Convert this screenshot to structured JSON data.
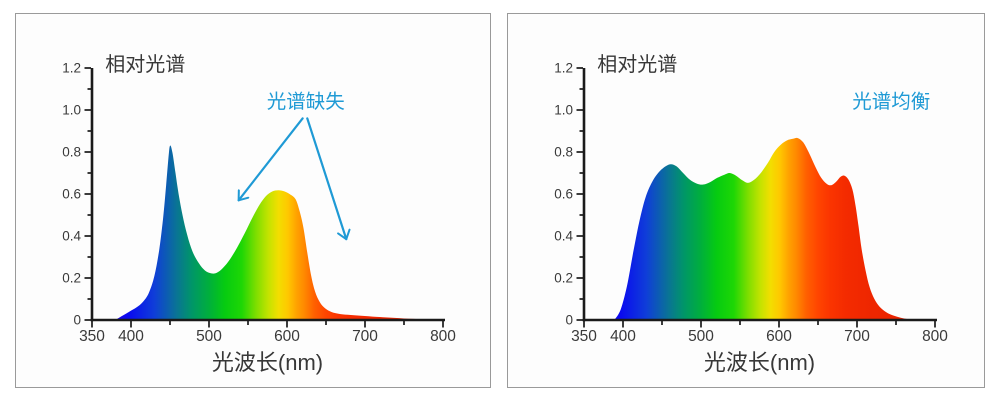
{
  "page": {
    "background": "#ffffff",
    "panel_background": "#fdfdfd",
    "panel_border_color": "#9a9a9a"
  },
  "colors": {
    "axis_line": "#1a1a1a",
    "tick_text": "#3a3a3a",
    "title_text": "#383838",
    "highlight_blue": "#1f9ad5"
  },
  "spectrum_gradient": [
    {
      "nm": 350,
      "color": "#3d00d9"
    },
    {
      "nm": 397,
      "color": "#0a0af0"
    },
    {
      "nm": 430,
      "color": "#0f3ed8"
    },
    {
      "nm": 458,
      "color": "#0a7396"
    },
    {
      "nm": 478,
      "color": "#009668"
    },
    {
      "nm": 500,
      "color": "#00af3c"
    },
    {
      "nm": 520,
      "color": "#06cb11"
    },
    {
      "nm": 542,
      "color": "#1ed705"
    },
    {
      "nm": 560,
      "color": "#7cde00"
    },
    {
      "nm": 576,
      "color": "#c3e300"
    },
    {
      "nm": 589,
      "color": "#f2de00"
    },
    {
      "nm": 601,
      "color": "#ffc800"
    },
    {
      "nm": 613,
      "color": "#ffa000"
    },
    {
      "nm": 622,
      "color": "#ff8a00"
    },
    {
      "nm": 635,
      "color": "#ff6000"
    },
    {
      "nm": 650,
      "color": "#ff4500"
    },
    {
      "nm": 665,
      "color": "#fb3500"
    },
    {
      "nm": 685,
      "color": "#f42b00"
    },
    {
      "nm": 720,
      "color": "#ee2600"
    },
    {
      "nm": 800,
      "color": "#e62000"
    }
  ],
  "chart_data": [
    {
      "type": "area",
      "title": "相对光谱",
      "xlabel": "光波长(nm)",
      "ylabel": "",
      "xlim": [
        350,
        800
      ],
      "ylim": [
        0,
        1.2
      ],
      "grid": false,
      "x_ticks": [
        {
          "v": 350,
          "label": "350"
        },
        {
          "v": 400,
          "label": "400"
        },
        {
          "v": 450,
          "label": ""
        },
        {
          "v": 500,
          "label": "500"
        },
        {
          "v": 550,
          "label": ""
        },
        {
          "v": 600,
          "label": "600"
        },
        {
          "v": 650,
          "label": ""
        },
        {
          "v": 700,
          "label": "700"
        },
        {
          "v": 750,
          "label": ""
        },
        {
          "v": 800,
          "label": "800"
        }
      ],
      "y_ticks": [
        {
          "v": 0,
          "label": "0"
        },
        {
          "v": 0.1,
          "label": ""
        },
        {
          "v": 0.2,
          "label": "0.2"
        },
        {
          "v": 0.3,
          "label": ""
        },
        {
          "v": 0.4,
          "label": "0.4"
        },
        {
          "v": 0.5,
          "label": ""
        },
        {
          "v": 0.6,
          "label": "0.6"
        },
        {
          "v": 0.7,
          "label": ""
        },
        {
          "v": 0.8,
          "label": "0.8"
        },
        {
          "v": 0.9,
          "label": ""
        },
        {
          "v": 1.0,
          "label": "1.0"
        },
        {
          "v": 1.1,
          "label": ""
        },
        {
          "v": 1.2,
          "label": "1.2"
        }
      ],
      "title_pos": {
        "x_nm": 367,
        "y_rel": 1.185
      },
      "annotation": {
        "text": "光谱缺失",
        "x_nm": 624,
        "y_rel": 1.01,
        "arrows": [
          {
            "from": [
              620,
              0.96
            ],
            "to": [
              538,
              0.57
            ]
          },
          {
            "from": [
              626,
              0.96
            ],
            "to": [
              676,
              0.385
            ]
          }
        ]
      },
      "curve": [
        [
          380,
          0
        ],
        [
          389,
          0.02
        ],
        [
          398,
          0.04
        ],
        [
          407,
          0.06
        ],
        [
          415,
          0.085
        ],
        [
          423,
          0.13
        ],
        [
          430,
          0.21
        ],
        [
          436,
          0.33
        ],
        [
          441,
          0.48
        ],
        [
          445,
          0.64
        ],
        [
          448,
          0.77
        ],
        [
          450,
          0.83
        ],
        [
          453,
          0.8
        ],
        [
          457,
          0.7
        ],
        [
          461,
          0.6
        ],
        [
          466,
          0.5
        ],
        [
          472,
          0.405
        ],
        [
          479,
          0.325
        ],
        [
          487,
          0.27
        ],
        [
          495,
          0.235
        ],
        [
          503,
          0.222
        ],
        [
          510,
          0.225
        ],
        [
          518,
          0.248
        ],
        [
          527,
          0.29
        ],
        [
          536,
          0.345
        ],
        [
          546,
          0.415
        ],
        [
          556,
          0.49
        ],
        [
          565,
          0.55
        ],
        [
          573,
          0.59
        ],
        [
          581,
          0.612
        ],
        [
          589,
          0.618
        ],
        [
          597,
          0.612
        ],
        [
          604,
          0.598
        ],
        [
          611,
          0.575
        ],
        [
          616,
          0.52
        ],
        [
          621,
          0.44
        ],
        [
          626,
          0.32
        ],
        [
          631,
          0.21
        ],
        [
          636,
          0.135
        ],
        [
          642,
          0.085
        ],
        [
          649,
          0.055
        ],
        [
          657,
          0.038
        ],
        [
          666,
          0.03
        ],
        [
          678,
          0.025
        ],
        [
          695,
          0.02
        ],
        [
          715,
          0.015
        ],
        [
          738,
          0.01
        ],
        [
          762,
          0.005
        ],
        [
          785,
          0.002
        ],
        [
          797,
          0
        ]
      ]
    },
    {
      "type": "area",
      "title": "相对光谱",
      "xlabel": "光波长(nm)",
      "ylabel": "",
      "xlim": [
        350,
        800
      ],
      "ylim": [
        0,
        1.2
      ],
      "grid": false,
      "x_ticks": [
        {
          "v": 350,
          "label": "350"
        },
        {
          "v": 400,
          "label": "400"
        },
        {
          "v": 450,
          "label": ""
        },
        {
          "v": 500,
          "label": "500"
        },
        {
          "v": 550,
          "label": ""
        },
        {
          "v": 600,
          "label": "600"
        },
        {
          "v": 650,
          "label": ""
        },
        {
          "v": 700,
          "label": "700"
        },
        {
          "v": 750,
          "label": ""
        },
        {
          "v": 800,
          "label": "800"
        }
      ],
      "y_ticks": [
        {
          "v": 0,
          "label": "0"
        },
        {
          "v": 0.1,
          "label": ""
        },
        {
          "v": 0.2,
          "label": "0.2"
        },
        {
          "v": 0.3,
          "label": ""
        },
        {
          "v": 0.4,
          "label": "0.4"
        },
        {
          "v": 0.5,
          "label": ""
        },
        {
          "v": 0.6,
          "label": "0.6"
        },
        {
          "v": 0.7,
          "label": ""
        },
        {
          "v": 0.8,
          "label": "0.8"
        },
        {
          "v": 0.9,
          "label": ""
        },
        {
          "v": 1.0,
          "label": "1.0"
        },
        {
          "v": 1.1,
          "label": ""
        },
        {
          "v": 1.2,
          "label": "1.2"
        }
      ],
      "title_pos": {
        "x_nm": 367,
        "y_rel": 1.185
      },
      "annotation": {
        "text": "光谱均衡",
        "x_nm": 744,
        "y_rel": 1.01,
        "arrows": []
      },
      "curve": [
        [
          389,
          0
        ],
        [
          397,
          0.05
        ],
        [
          405,
          0.16
        ],
        [
          413,
          0.32
        ],
        [
          421,
          0.47
        ],
        [
          429,
          0.585
        ],
        [
          437,
          0.655
        ],
        [
          445,
          0.7
        ],
        [
          453,
          0.728
        ],
        [
          461,
          0.742
        ],
        [
          469,
          0.731
        ],
        [
          477,
          0.7
        ],
        [
          486,
          0.667
        ],
        [
          495,
          0.649
        ],
        [
          503,
          0.645
        ],
        [
          512,
          0.657
        ],
        [
          521,
          0.677
        ],
        [
          530,
          0.692
        ],
        [
          537,
          0.7
        ],
        [
          545,
          0.687
        ],
        [
          553,
          0.665
        ],
        [
          560,
          0.653
        ],
        [
          568,
          0.667
        ],
        [
          577,
          0.702
        ],
        [
          586,
          0.75
        ],
        [
          594,
          0.8
        ],
        [
          602,
          0.834
        ],
        [
          610,
          0.855
        ],
        [
          618,
          0.863
        ],
        [
          624,
          0.866
        ],
        [
          631,
          0.846
        ],
        [
          639,
          0.792
        ],
        [
          647,
          0.726
        ],
        [
          654,
          0.678
        ],
        [
          661,
          0.649
        ],
        [
          667,
          0.642
        ],
        [
          673,
          0.657
        ],
        [
          679,
          0.682
        ],
        [
          684,
          0.687
        ],
        [
          689,
          0.669
        ],
        [
          694,
          0.624
        ],
        [
          698,
          0.548
        ],
        [
          702,
          0.445
        ],
        [
          706,
          0.335
        ],
        [
          711,
          0.235
        ],
        [
          716,
          0.158
        ],
        [
          722,
          0.102
        ],
        [
          729,
          0.063
        ],
        [
          737,
          0.038
        ],
        [
          746,
          0.022
        ],
        [
          756,
          0.011
        ],
        [
          766,
          0.004
        ],
        [
          776,
          0
        ]
      ]
    }
  ]
}
